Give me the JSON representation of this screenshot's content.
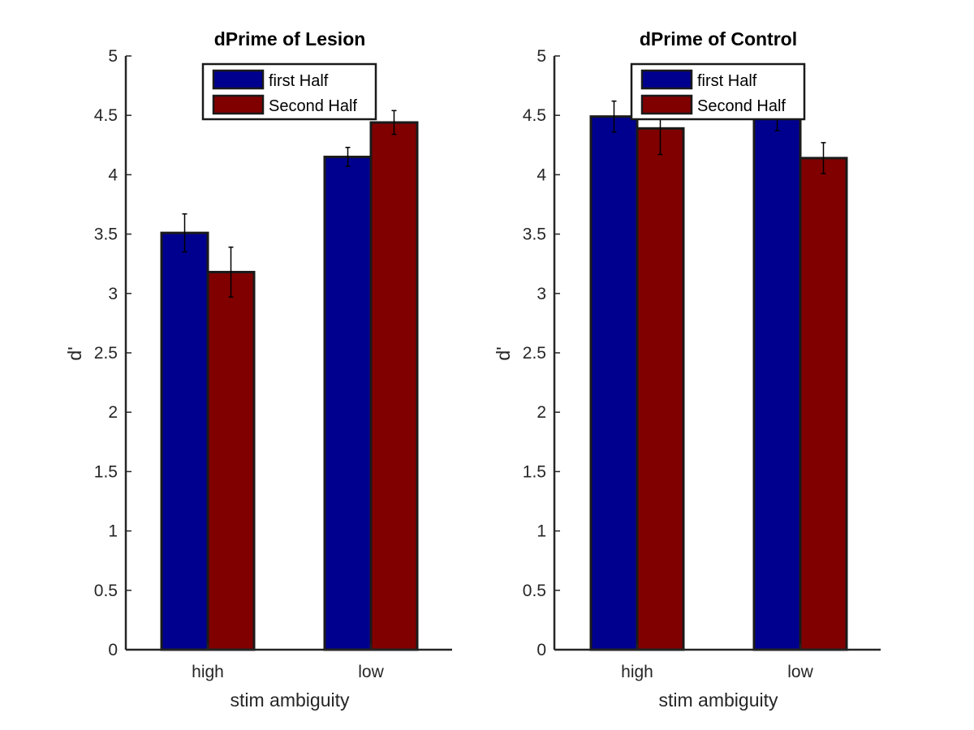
{
  "colors": {
    "first_half": "#00008f",
    "second_half": "#800000",
    "axis": "#262626",
    "bar_edge": "#1a1a1a",
    "background": "#ffffff"
  },
  "chart_data": [
    {
      "type": "bar",
      "title": "dPrime of Lesion",
      "xlabel": "stim ambiguity",
      "ylabel": "d'",
      "categories": [
        "high",
        "low"
      ],
      "ylim": [
        0,
        5
      ],
      "yticks": [
        0,
        0.5,
        1,
        1.5,
        2,
        2.5,
        3,
        3.5,
        4,
        4.5,
        5
      ],
      "ytick_labels": [
        "0",
        "0.5",
        "1",
        "1.5",
        "2",
        "2.5",
        "3",
        "3.5",
        "4",
        "4.5",
        "5"
      ],
      "grid": false,
      "legend": "top-center",
      "series": [
        {
          "name": "first Half",
          "values": [
            3.51,
            4.15
          ],
          "errors": [
            0.16,
            0.08
          ]
        },
        {
          "name": "Second Half",
          "values": [
            3.18,
            4.44
          ],
          "errors": [
            0.21,
            0.1
          ]
        }
      ]
    },
    {
      "type": "bar",
      "title": "dPrime of Control",
      "xlabel": "stim ambiguity",
      "ylabel": "d'",
      "categories": [
        "high",
        "low"
      ],
      "ylim": [
        0,
        5
      ],
      "yticks": [
        0,
        0.5,
        1,
        1.5,
        2,
        2.5,
        3,
        3.5,
        4,
        4.5,
        5
      ],
      "ytick_labels": [
        "0",
        "0.5",
        "1",
        "1.5",
        "2",
        "2.5",
        "3",
        "3.5",
        "4",
        "4.5",
        "5"
      ],
      "grid": false,
      "legend": "top-center",
      "series": [
        {
          "name": "first Half",
          "values": [
            4.49,
            4.55
          ],
          "errors": [
            0.13,
            0.18
          ]
        },
        {
          "name": "Second Half",
          "values": [
            4.39,
            4.14
          ],
          "errors": [
            0.22,
            0.13
          ]
        }
      ]
    }
  ]
}
